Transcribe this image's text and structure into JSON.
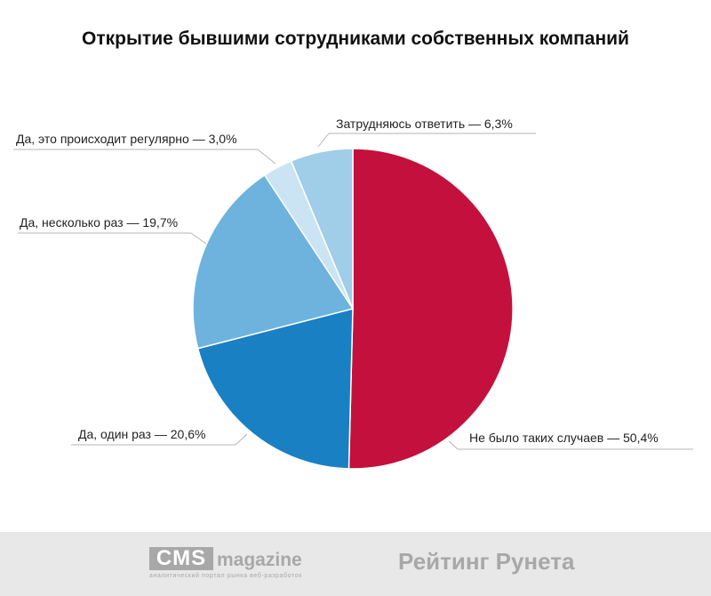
{
  "chart_data": {
    "type": "pie",
    "title": "Открытие бывшими сотрудниками собственных компаний",
    "slices": [
      {
        "label": "Не было таких случаев — 50,4%",
        "value": 50.4,
        "color": "#c4103c"
      },
      {
        "label": "Да, один раз — 20,6%",
        "value": 20.6,
        "color": "#1a80c4"
      },
      {
        "label": "Да, несколько раз — 19,7%",
        "value": 19.7,
        "color": "#6db3de"
      },
      {
        "label": "Да, это происходит регулярно — 3,0%",
        "value": 3.0,
        "color": "#cbe4f3"
      },
      {
        "label": "Затрудняюсь ответить — 6,3%",
        "value": 6.3,
        "color": "#a0cde8"
      }
    ],
    "start": "12 o'clock",
    "direction": "clockwise",
    "legend": "none (leader-line labels)"
  },
  "footer": {
    "cms_logo": "CMS",
    "cms_word": "magazine",
    "cms_tagline": "аналитический портал рынка веб-разработок",
    "rating_logo": "Рейтинг Рунета"
  }
}
